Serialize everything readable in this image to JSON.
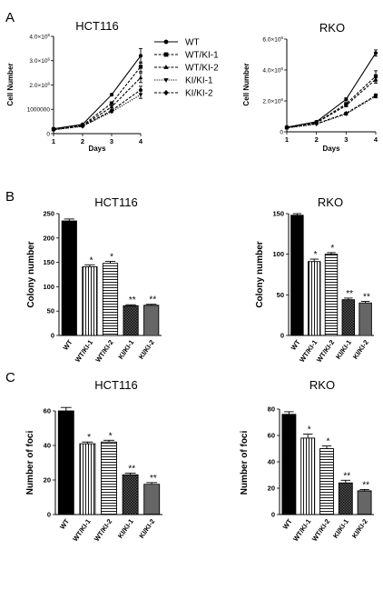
{
  "figure": {
    "panels": [
      {
        "letter": "A"
      },
      {
        "letter": "B"
      },
      {
        "letter": "C"
      }
    ]
  },
  "colors": {
    "WT": "#000000",
    "WT/KI-1": "#ffffff",
    "WT/KI-2": "#ffffff",
    "KI/KI-1": "#555555",
    "KI/KI-2": "#999999"
  },
  "legend": {
    "entries": [
      {
        "label": "WT",
        "marker": "circle",
        "dash": "solid"
      },
      {
        "label": "WT/KI-1",
        "marker": "square",
        "dash": "dash"
      },
      {
        "label": "WT/KI-2",
        "marker": "triangle-up",
        "dash": "dash"
      },
      {
        "label": "KI/KI-1",
        "marker": "triangle-down",
        "dash": "dot"
      },
      {
        "label": "KI/KI-2",
        "marker": "diamond",
        "dash": "dash"
      }
    ]
  },
  "chart_data": [
    {
      "id": "a1",
      "panel": "A",
      "type": "line",
      "title": "HCT116",
      "xlabel": "Days",
      "ylabel": "Cell Number",
      "x": [
        1,
        2,
        3,
        4
      ],
      "xticks": [
        "1",
        "2",
        "3",
        "4"
      ],
      "ylim": [
        0,
        4000000
      ],
      "yticks": [
        {
          "value": 0,
          "label": "0"
        },
        {
          "value": 1000000,
          "label": "1000000"
        },
        {
          "value": 2000000,
          "label": "2.0×10^6"
        },
        {
          "value": 3000000,
          "label": "3.0×10^6"
        },
        {
          "value": 4000000,
          "label": "4.0×10^6"
        }
      ],
      "series": [
        {
          "name": "WT",
          "values": [
            200000,
            380000,
            1600000,
            3200000
          ],
          "err": [
            0,
            0,
            40000,
            300000
          ]
        },
        {
          "name": "WT/KI-1",
          "values": [
            180000,
            340000,
            1250000,
            2750000
          ],
          "err": [
            0,
            0,
            40000,
            200000
          ]
        },
        {
          "name": "WT/KI-2",
          "values": [
            170000,
            320000,
            1100000,
            2300000
          ],
          "err": [
            0,
            0,
            40000,
            200000
          ]
        },
        {
          "name": "KI/KI-1",
          "values": [
            160000,
            300000,
            900000,
            1600000
          ],
          "err": [
            0,
            0,
            30000,
            150000
          ]
        },
        {
          "name": "KI/KI-2",
          "values": [
            160000,
            310000,
            950000,
            1800000
          ],
          "err": [
            0,
            0,
            30000,
            150000
          ]
        }
      ]
    },
    {
      "id": "a2",
      "panel": "A",
      "type": "line",
      "title": "RKO",
      "xlabel": "Days",
      "ylabel": "Cell Number",
      "x": [
        1,
        2,
        3,
        4
      ],
      "xticks": [
        "1",
        "2",
        "3",
        "4"
      ],
      "ylim": [
        0,
        6000000
      ],
      "yticks": [
        {
          "value": 0,
          "label": "0"
        },
        {
          "value": 2000000,
          "label": "2.0×10^6"
        },
        {
          "value": 4000000,
          "label": "4.0×10^6"
        },
        {
          "value": 6000000,
          "label": "6.0×10^6"
        }
      ],
      "series": [
        {
          "name": "WT",
          "values": [
            300000,
            650000,
            2100000,
            5100000
          ],
          "err": [
            0,
            0,
            100000,
            200000
          ]
        },
        {
          "name": "WT/KI-1",
          "values": [
            280000,
            600000,
            1800000,
            3600000
          ],
          "err": [
            0,
            0,
            80000,
            350000
          ]
        },
        {
          "name": "WT/KI-2",
          "values": [
            270000,
            580000,
            1700000,
            3400000
          ],
          "err": [
            0,
            0,
            80000,
            250000
          ]
        },
        {
          "name": "KI/KI-1",
          "values": [
            250000,
            500000,
            1150000,
            2300000
          ],
          "err": [
            0,
            0,
            60000,
            100000
          ]
        },
        {
          "name": "KI/KI-2",
          "values": [
            260000,
            520000,
            1200000,
            2350000
          ],
          "err": [
            0,
            0,
            60000,
            100000
          ]
        }
      ]
    },
    {
      "id": "b1",
      "panel": "B",
      "type": "bar",
      "title": "HCT116",
      "xlabel": "",
      "ylabel": "Colony number",
      "categories": [
        "WT",
        "WT/KI-1",
        "WT/KI-2",
        "KI/KI-1",
        "KI/KI-2"
      ],
      "values": [
        235,
        141,
        148,
        61,
        62
      ],
      "err": [
        4,
        4,
        4,
        2,
        2
      ],
      "annotations": [
        "",
        "*",
        "*",
        "**",
        "**"
      ],
      "ylim": [
        0,
        250
      ],
      "yticks": [
        0,
        50,
        100,
        150,
        200,
        250
      ]
    },
    {
      "id": "b2",
      "panel": "B",
      "type": "bar",
      "title": "RKO",
      "xlabel": "",
      "ylabel": "Colony number",
      "categories": [
        "WT",
        "WT/KI-1",
        "WT/KI-2",
        "KI/KI-1",
        "KI/KI-2"
      ],
      "values": [
        148,
        91,
        100,
        44,
        40
      ],
      "err": [
        2,
        3,
        2,
        2,
        2
      ],
      "annotations": [
        "",
        "*",
        "*",
        "**",
        "**"
      ],
      "ylim": [
        0,
        150
      ],
      "yticks": [
        0,
        50,
        100,
        150
      ]
    },
    {
      "id": "c1",
      "panel": "C",
      "type": "bar",
      "title": "HCT116",
      "xlabel": "",
      "ylabel": "Number of foci",
      "categories": [
        "WT",
        "WT/KI-1",
        "WT/KI-2",
        "KI/KI-1",
        "KI/KI-2"
      ],
      "values": [
        60,
        41,
        42,
        23,
        17.5
      ],
      "err": [
        2,
        1,
        1,
        1,
        1
      ],
      "annotations": [
        "",
        "*",
        "*",
        "**",
        "**"
      ],
      "ylim": [
        0,
        60
      ],
      "yticks": [
        0,
        20,
        40,
        60
      ]
    },
    {
      "id": "c2",
      "panel": "C",
      "type": "bar",
      "title": "RKO",
      "xlabel": "",
      "ylabel": "Number of foci",
      "categories": [
        "WT",
        "WT/KI-1",
        "WT/KI-2",
        "KI/KI-1",
        "KI/KI-2"
      ],
      "values": [
        76,
        58,
        50,
        24,
        18
      ],
      "err": [
        2,
        3,
        2,
        2,
        1
      ],
      "annotations": [
        "",
        "*",
        "*",
        "**",
        "**"
      ],
      "ylim": [
        0,
        80
      ],
      "yticks": [
        0,
        20,
        40,
        60,
        80
      ]
    }
  ]
}
